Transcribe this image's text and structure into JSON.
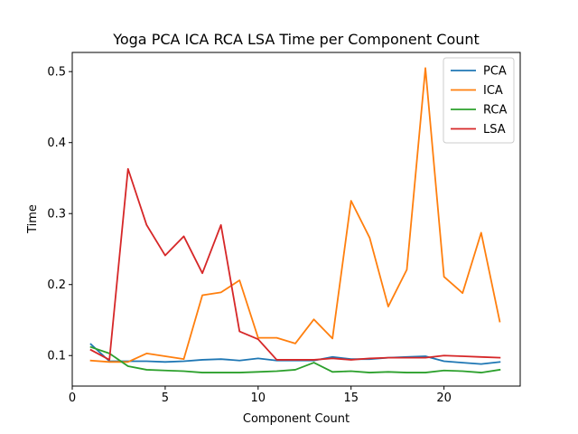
{
  "chart_data": {
    "type": "line",
    "title": "Yoga PCA ICA RCA LSA Time per Component Count",
    "xlabel": "Component Count",
    "ylabel": "Time",
    "xlim": [
      0,
      24.1
    ],
    "ylim": [
      0.057,
      0.527
    ],
    "xticks": [
      0,
      5,
      10,
      15,
      20
    ],
    "yticks": [
      0.1,
      0.2,
      0.3,
      0.4,
      0.5
    ],
    "xtick_labels": [
      "0",
      "5",
      "10",
      "15",
      "20"
    ],
    "ytick_labels": [
      "0.1",
      "0.2",
      "0.3",
      "0.4",
      "0.5"
    ],
    "grid": false,
    "legend_position": "top-right",
    "x": [
      1,
      2,
      3,
      4,
      5,
      6,
      7,
      8,
      9,
      10,
      11,
      12,
      13,
      14,
      15,
      16,
      17,
      18,
      19,
      20,
      21,
      22,
      23
    ],
    "series": [
      {
        "name": "PCA",
        "color": "#1f77b4",
        "values": [
          0.116,
          0.092,
          0.092,
          0.092,
          0.091,
          0.092,
          0.094,
          0.095,
          0.093,
          0.096,
          0.093,
          0.093,
          0.093,
          0.098,
          0.095,
          0.095,
          0.097,
          0.098,
          0.099,
          0.092,
          0.09,
          0.088,
          0.091
        ]
      },
      {
        "name": "ICA",
        "color": "#ff7f0e",
        "values": [
          0.093,
          0.091,
          0.091,
          0.103,
          0.099,
          0.095,
          0.185,
          0.189,
          0.206,
          0.125,
          0.125,
          0.117,
          0.151,
          0.124,
          0.318,
          0.266,
          0.169,
          0.221,
          0.505,
          0.211,
          0.188,
          0.273,
          0.148
        ]
      },
      {
        "name": "RCA",
        "color": "#2ca02c",
        "values": [
          0.112,
          0.103,
          0.085,
          0.08,
          0.079,
          0.078,
          0.076,
          0.076,
          0.076,
          0.077,
          0.078,
          0.08,
          0.09,
          0.077,
          0.078,
          0.076,
          0.077,
          0.076,
          0.076,
          0.079,
          0.078,
          0.076,
          0.08
        ]
      },
      {
        "name": "LSA",
        "color": "#d62728",
        "values": [
          0.108,
          0.094,
          0.363,
          0.284,
          0.241,
          0.268,
          0.216,
          0.284,
          0.134,
          0.123,
          0.094,
          0.094,
          0.094,
          0.096,
          0.094,
          0.096,
          0.097,
          0.097,
          0.097,
          0.1,
          0.099,
          0.098,
          0.097
        ]
      }
    ]
  }
}
